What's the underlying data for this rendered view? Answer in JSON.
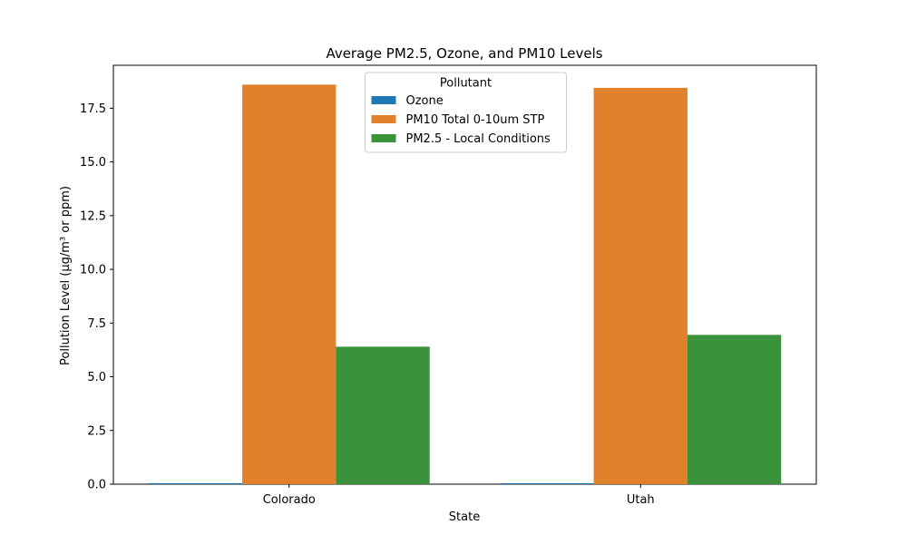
{
  "chart_data": {
    "type": "bar",
    "title": "Average PM2.5, Ozone, and PM10 Levels",
    "xlabel": "State",
    "ylabel": "Pollution Level (µg/m³ or ppm)",
    "categories": [
      "Colorado",
      "Utah"
    ],
    "ylim": [
      0,
      19.5
    ],
    "yticks": [
      0,
      2.5,
      5,
      7.5,
      10,
      12.5,
      15,
      17.5
    ],
    "ytick_labels": [
      "0.0",
      "2.5",
      "5.0",
      "7.5",
      "10.0",
      "12.5",
      "15.0",
      "17.5"
    ],
    "grid": false,
    "legend": {
      "title": "Pollutant",
      "placement": "upper-center"
    },
    "series": [
      {
        "name": "Ozone",
        "color": "#1f77b4",
        "values": [
          0.045,
          0.045
        ]
      },
      {
        "name": "PM10 Total 0-10um STP",
        "color": "#e1812c",
        "values": [
          18.6,
          18.45
        ]
      },
      {
        "name": "PM2.5 - Local Conditions",
        "color": "#3a923a",
        "values": [
          6.4,
          6.95
        ]
      }
    ]
  }
}
